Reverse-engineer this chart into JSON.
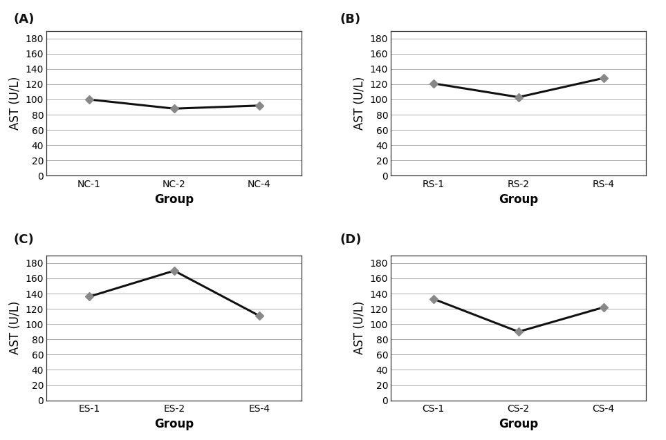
{
  "panels": [
    {
      "label": "(A)",
      "x_labels": [
        "NC-1",
        "NC-2",
        "NC-4"
      ],
      "y_values": [
        100,
        88,
        92
      ],
      "xlabel": "Group",
      "ylabel": "AST (U/L)"
    },
    {
      "label": "(B)",
      "x_labels": [
        "RS-1",
        "RS-2",
        "RS-4"
      ],
      "y_values": [
        121,
        103,
        128
      ],
      "xlabel": "Group",
      "ylabel": "AST (U/L)"
    },
    {
      "label": "(C)",
      "x_labels": [
        "ES-1",
        "ES-2",
        "ES-4"
      ],
      "y_values": [
        136,
        170,
        111
      ],
      "xlabel": "Group",
      "ylabel": "AST (U/L)"
    },
    {
      "label": "(D)",
      "x_labels": [
        "CS-1",
        "CS-2",
        "CS-4"
      ],
      "y_values": [
        133,
        90,
        122
      ],
      "xlabel": "Group",
      "ylabel": "AST (U/L)"
    }
  ],
  "ylim": [
    0,
    190
  ],
  "yticks": [
    0,
    20,
    40,
    60,
    80,
    100,
    120,
    140,
    160,
    180
  ],
  "line_color": "#111111",
  "marker_color": "#888888",
  "marker": "D",
  "marker_size": 6,
  "line_width": 2.2,
  "background_color": "#ffffff",
  "grid_color": "#aaaaaa",
  "tick_fontsize": 10,
  "axis_label_fontsize": 12,
  "panel_label_fontsize": 13,
  "xlabel_fontweight": "bold",
  "spine_color": "#333333"
}
